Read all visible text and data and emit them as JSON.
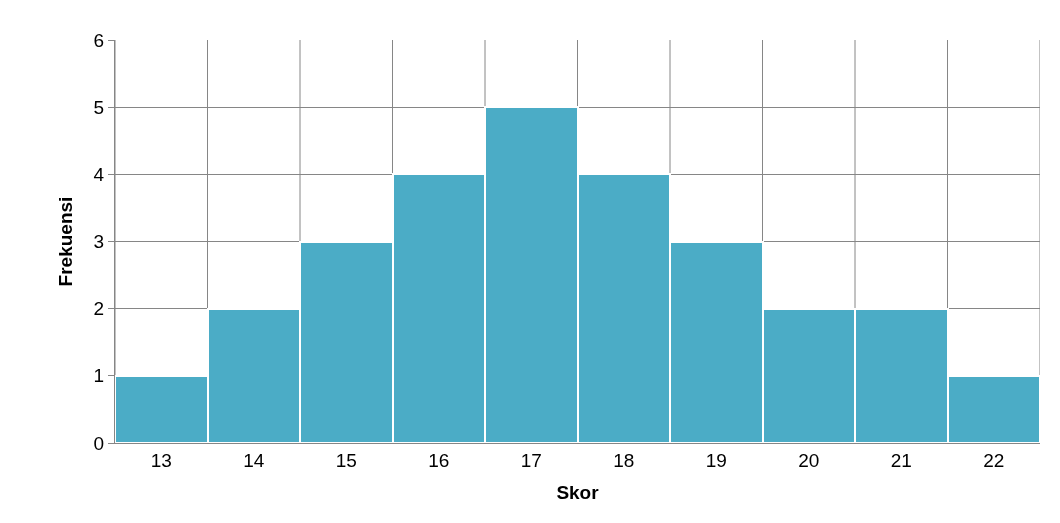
{
  "chart_data": {
    "type": "bar",
    "xlabel": "Skor",
    "ylabel": "Frekuensi",
    "categories": [
      "13",
      "14",
      "15",
      "16",
      "17",
      "18",
      "19",
      "20",
      "21",
      "22"
    ],
    "values": [
      1,
      2,
      3,
      4,
      5,
      4,
      3,
      2,
      2,
      1
    ],
    "color": "#4bacc6",
    "ylim": [
      0,
      6
    ],
    "yticks": [
      0,
      1,
      2,
      3,
      4,
      5,
      6
    ],
    "grid": true
  }
}
